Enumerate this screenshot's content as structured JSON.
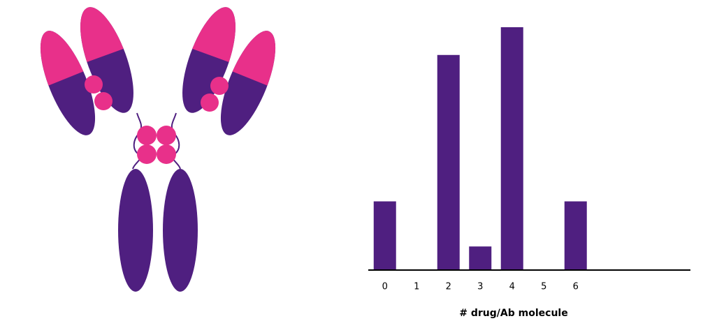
{
  "chart_data": {
    "type": "bar",
    "x_label": "# drug/Ab molecule",
    "categories": [
      "0",
      "1",
      "2",
      "3",
      "4",
      "5",
      "6"
    ],
    "values": [
      9.8,
      0,
      30.9,
      3.3,
      34.9,
      0,
      9.8
    ],
    "color": "#4f1f80",
    "ylim": [
      0,
      35
    ]
  }
}
